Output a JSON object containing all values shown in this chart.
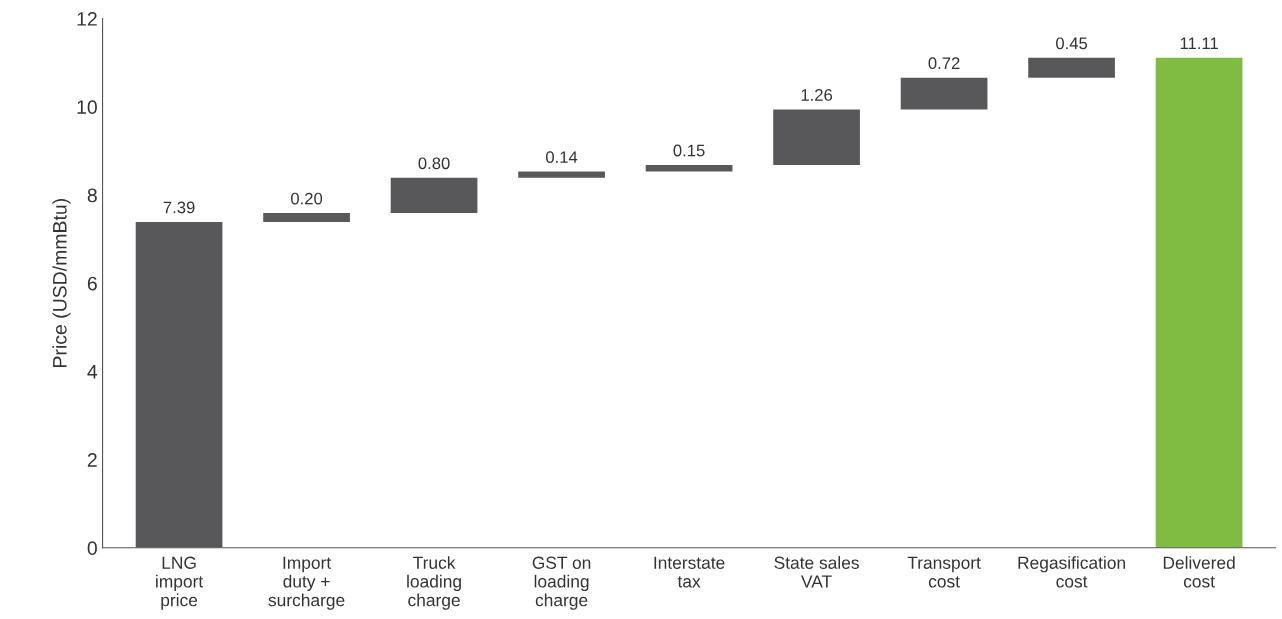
{
  "chart_data": {
    "type": "bar",
    "ylabel": "Price (USD/mmBtu)",
    "categories": [
      "LNG\nimport\nprice",
      "Import\nduty +\nsurcharge",
      "Truck\nloading\ncharge",
      "GST on\nloading\ncharge",
      "Interstate\ntax",
      "State sales\nVAT",
      "Transport\ncost",
      "Regasification\ncost",
      "Delivered\ncost"
    ],
    "values": [
      7.39,
      0.2,
      0.8,
      0.14,
      0.15,
      1.26,
      0.72,
      0.45,
      11.11
    ],
    "base": [
      0,
      7.39,
      7.59,
      8.39,
      8.53,
      8.68,
      9.94,
      10.66,
      0
    ],
    "colors": [
      "#58585a",
      "#58585a",
      "#58585a",
      "#58585a",
      "#58585a",
      "#58585a",
      "#58585a",
      "#58585a",
      "#80bc41"
    ],
    "value_labels": [
      "7.39",
      "0.20",
      "0.80",
      "0.14",
      "0.15",
      "1.26",
      "0.72",
      "0.45",
      "11.11"
    ],
    "ylim": [
      0,
      12
    ],
    "yticks": [
      0,
      2,
      4,
      6,
      8,
      10,
      12
    ],
    "grid": false,
    "legend": false
  }
}
